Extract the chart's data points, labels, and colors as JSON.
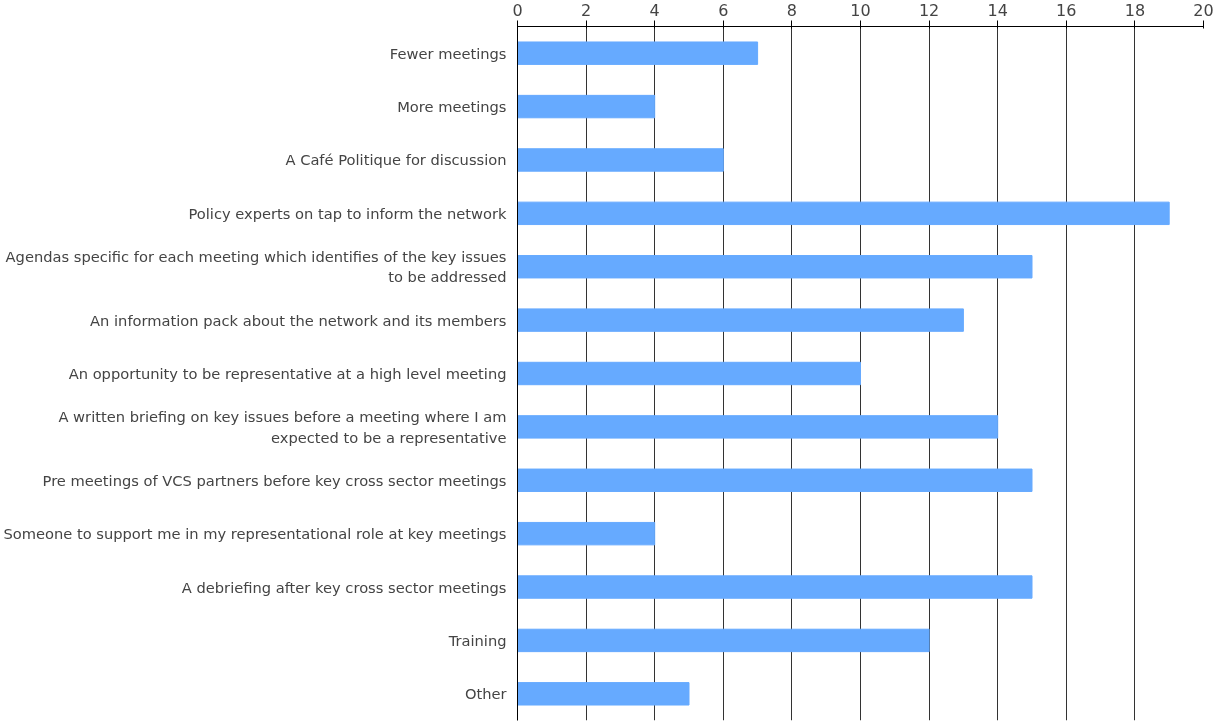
{
  "chart_data": {
    "type": "bar",
    "orientation": "horizontal",
    "categories": [
      "Fewer meetings",
      "More meetings",
      "A Café Politique for discussion",
      "Policy experts on tap to inform the network",
      "Agendas specific for each meeting which identifies of the key issues to be addressed",
      "An information pack about the network and its members",
      "An opportunity to be representative at a high level meeting",
      "A written briefing on key issues before a meeting where I am expected to be a representative",
      "Pre meetings of VCS partners before key cross sector meetings",
      "Someone to support me in my representational role at key meetings",
      "A debriefing after key cross sector meetings",
      "Training",
      "Other"
    ],
    "values": [
      7,
      4,
      6,
      19,
      15,
      13,
      10,
      14,
      15,
      4,
      15,
      12,
      5
    ],
    "color": "#66aaff",
    "xlim": [
      0,
      20
    ],
    "xticks": [
      0,
      2,
      4,
      6,
      8,
      10,
      12,
      14,
      16,
      18,
      20
    ],
    "grid": "x"
  }
}
